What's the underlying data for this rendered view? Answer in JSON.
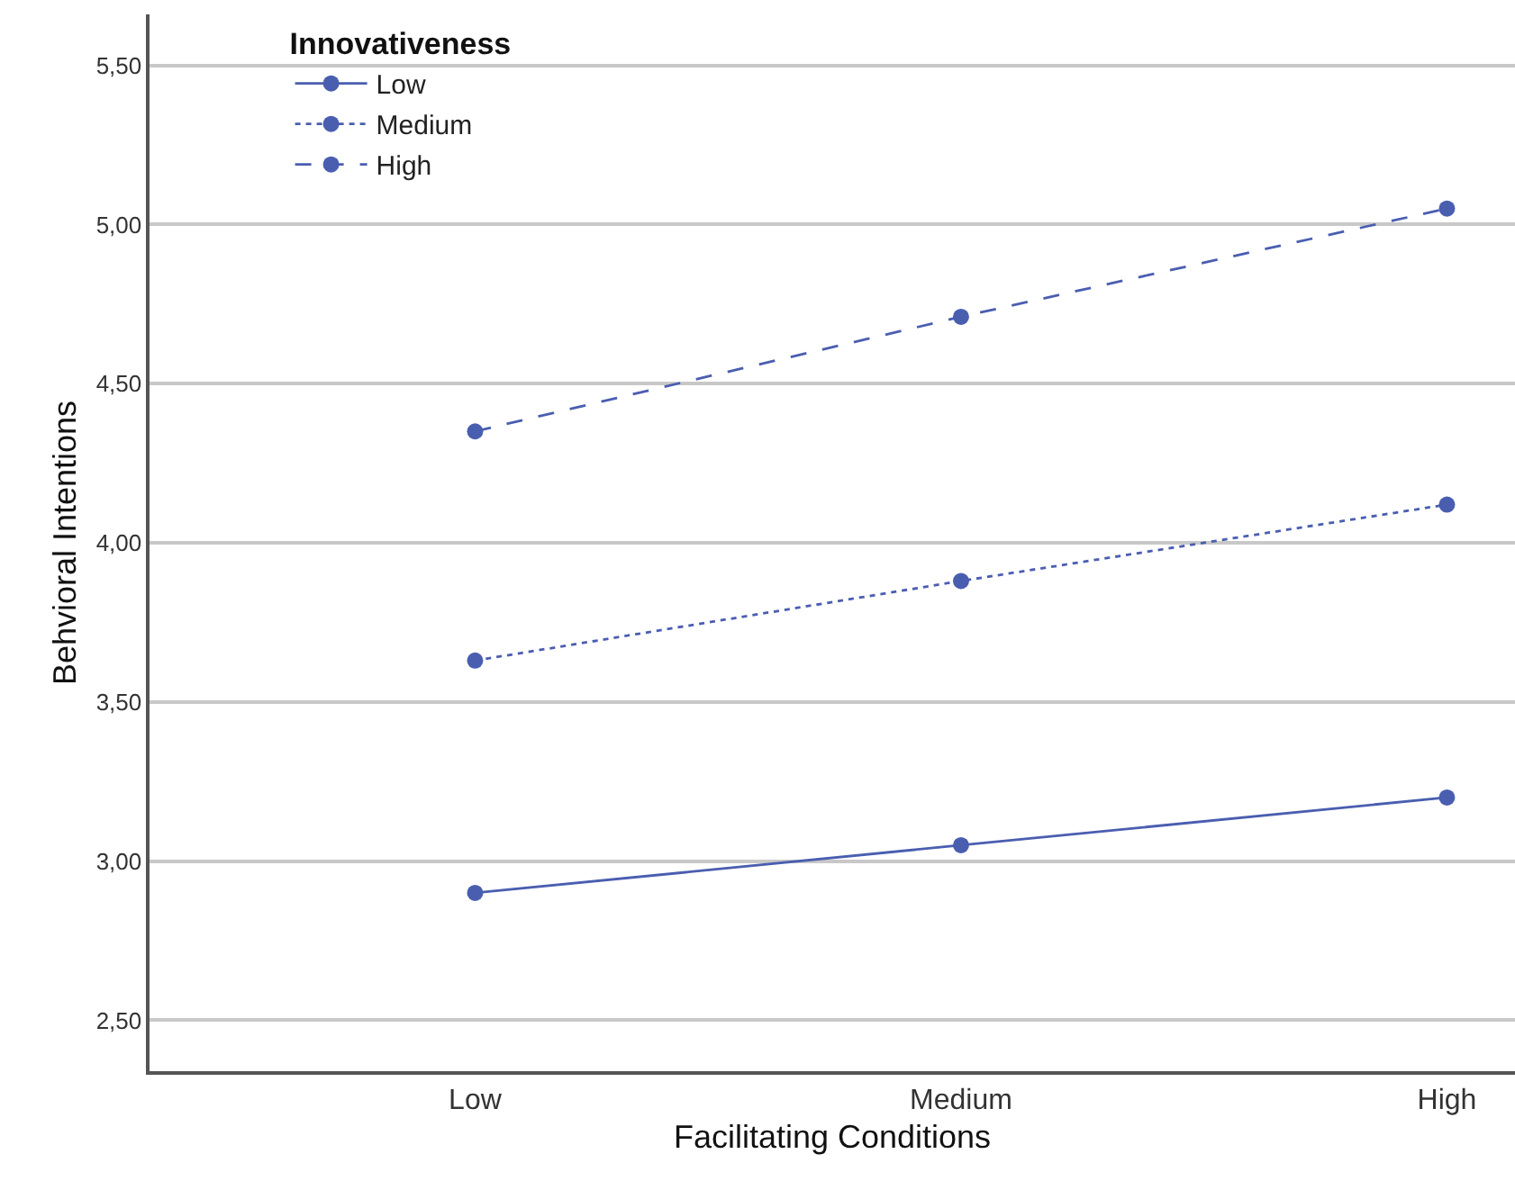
{
  "chart_data": {
    "type": "line",
    "xlabel": "Facilitating Conditions",
    "ylabel": "Behvioral Intentions",
    "legend_title": "Innovativeness",
    "categories": [
      "Low",
      "Medium",
      "High"
    ],
    "ylim": [
      2.34,
      5.66
    ],
    "yticks": [
      {
        "value": 2.5,
        "label": "2,50"
      },
      {
        "value": 3.0,
        "label": "3,00"
      },
      {
        "value": 3.5,
        "label": "3,50"
      },
      {
        "value": 4.0,
        "label": "4,00"
      },
      {
        "value": 4.5,
        "label": "4,50"
      },
      {
        "value": 5.0,
        "label": "5,00"
      },
      {
        "value": 5.5,
        "label": "5,50"
      }
    ],
    "grid": "y",
    "legend": "top left",
    "marker": "circle",
    "series": [
      {
        "name": "Low",
        "color": "#4a5eb0",
        "line_style": "solid",
        "values": [
          2.9,
          3.05,
          3.2
        ]
      },
      {
        "name": "Medium",
        "color": "#4a5eb0",
        "line_style": "dotted",
        "values": [
          3.63,
          3.88,
          4.12
        ]
      },
      {
        "name": "High",
        "color": "#4a5eb0",
        "line_style": "dashed",
        "values": [
          4.35,
          4.71,
          5.05
        ]
      }
    ]
  }
}
